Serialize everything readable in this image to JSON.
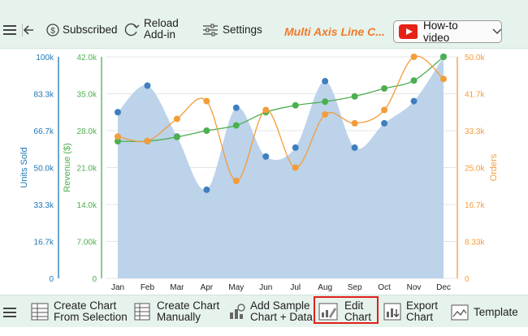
{
  "top_toolbar": {
    "subscribed_label": "Subscribed",
    "reload_label": "Reload\nAdd-in",
    "settings_label": "Settings",
    "chart_name": "Multi Axis Line C...",
    "howto_label": "How-to video"
  },
  "bottom_toolbar": {
    "create_from_selection_label": "Create Chart\nFrom Selection",
    "create_manually_label": "Create Chart\nManually",
    "add_sample_label": "Add Sample\nChart + Data",
    "edit_chart_label": "Edit\nChart",
    "export_chart_label": "Export\nChart",
    "template_label": "Template"
  },
  "colors": {
    "units": "#1f77b4",
    "units_fill": "#bcd3ea",
    "units_point": "#3f7fbf",
    "revenue": "#4caf50",
    "orders": "#f39c3a",
    "accent": "#e0201c",
    "toolbar_bg": "#e6f3ec"
  },
  "chart_data": {
    "type": "line",
    "categories": [
      "Jan",
      "Feb",
      "Mar",
      "Apr",
      "May",
      "Jun",
      "Jul",
      "Aug",
      "Sep",
      "Oct",
      "Nov",
      "Dec"
    ],
    "axes": {
      "units": {
        "label": "Units Sold",
        "range": [
          0,
          100000
        ],
        "ticks": [
          "0",
          "16.7k",
          "33.3k",
          "50.0k",
          "66.7k",
          "83.3k",
          "100k"
        ]
      },
      "revenue": {
        "label": "Revenue ($)",
        "range": [
          0,
          42000
        ],
        "ticks": [
          "0",
          "7.00k",
          "14.0k",
          "21.0k",
          "28.0k",
          "35.0k",
          "42.0k"
        ]
      },
      "orders": {
        "label": "Orders",
        "range": [
          0,
          50000
        ],
        "ticks": [
          "0",
          "8.33k",
          "16.7k",
          "25.0k",
          "33.3k",
          "41.7k",
          "50.0k"
        ]
      }
    },
    "series": [
      {
        "name": "Units Sold",
        "axis": "units",
        "kind": "area",
        "values": [
          75000,
          87000,
          64000,
          40000,
          77000,
          55000,
          59000,
          89000,
          59000,
          70000,
          80000,
          100000
        ]
      },
      {
        "name": "Revenue ($)",
        "axis": "revenue",
        "kind": "line",
        "values": [
          26000,
          26000,
          26800,
          28000,
          29000,
          31500,
          32800,
          33500,
          34500,
          36000,
          37500,
          42000
        ]
      },
      {
        "name": "Orders",
        "axis": "orders",
        "kind": "line",
        "values": [
          32000,
          31000,
          36000,
          40000,
          22000,
          38000,
          25000,
          37000,
          35000,
          38000,
          50000,
          45000
        ]
      }
    ]
  }
}
